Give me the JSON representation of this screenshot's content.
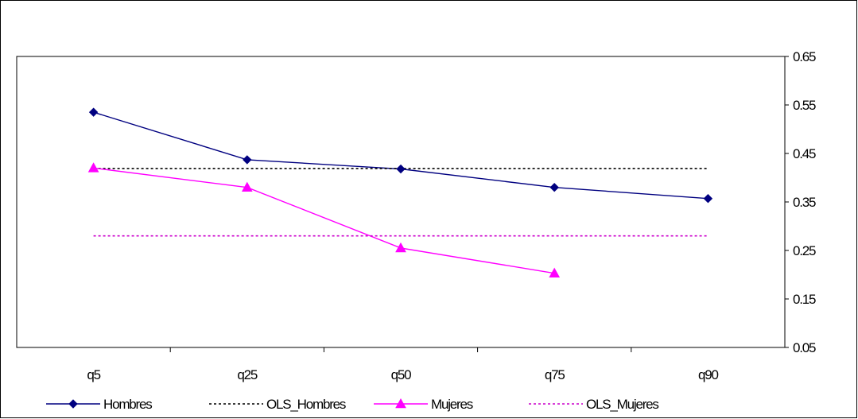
{
  "chart_data": {
    "type": "line",
    "title": "",
    "xlabel": "",
    "ylabel": "",
    "categories": [
      "q5",
      "q25",
      "q50",
      "q75",
      "q90"
    ],
    "y_axis_side": "right",
    "ylim": [
      0.05,
      0.65
    ],
    "yticks": [
      0.05,
      0.15,
      0.25,
      0.35,
      0.45,
      0.55,
      0.65
    ],
    "ytick_labels": [
      "0.05",
      "0.15",
      "0.25",
      "0.35",
      "0.45",
      "0.55",
      "0.65"
    ],
    "grid": false,
    "legend_position": "bottom",
    "series": [
      {
        "name": "Hombres",
        "values": [
          0.535,
          0.437,
          0.418,
          0.38,
          0.357
        ],
        "color": "#000080",
        "line_style": "solid",
        "marker": "diamond"
      },
      {
        "name": "OLS_Hombres",
        "values": [
          0.419,
          0.419,
          0.419,
          0.419,
          0.419
        ],
        "color": "#000000",
        "line_style": "dotted",
        "marker": "none"
      },
      {
        "name": "Mujeres",
        "values": [
          0.42,
          0.38,
          0.255,
          0.203,
          null
        ],
        "color": "#ff00ff",
        "line_style": "solid",
        "marker": "triangle"
      },
      {
        "name": "OLS_Mujeres",
        "values": [
          0.28,
          0.28,
          0.28,
          0.28,
          0.28
        ],
        "color": "#cc00cc",
        "line_style": "dotted",
        "marker": "none"
      }
    ]
  }
}
